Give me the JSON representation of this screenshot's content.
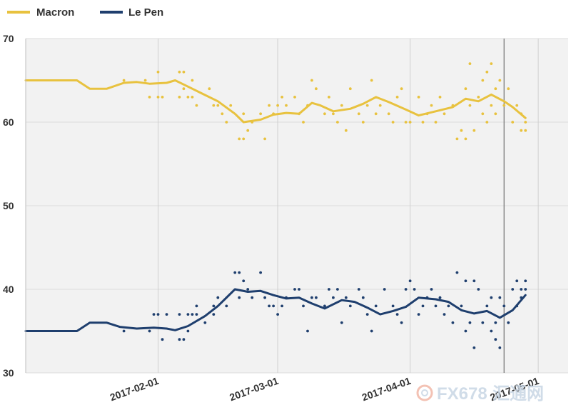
{
  "chart_data": {
    "type": "line",
    "title": "",
    "xlabel": "",
    "ylabel": "",
    "ylim": [
      30,
      70
    ],
    "yticks": [
      30,
      40,
      50,
      60,
      70
    ],
    "xticks": [
      {
        "date": "2017-02-01",
        "label": "2017-02-01"
      },
      {
        "date": "2017-03-01",
        "label": "2017-03-01"
      },
      {
        "date": "2017-04-01",
        "label": "2017-04-01"
      },
      {
        "date": "2017-05-01",
        "label": "2017-05-01"
      }
    ],
    "xrange": [
      "2017-01-01",
      "2017-05-08"
    ],
    "marker_line_date": "2017-04-23",
    "grid": true,
    "legend_position": "top-left",
    "series": [
      {
        "name": "Macron",
        "color": "#e8c23f",
        "trend": [
          [
            "2017-01-01",
            65.0
          ],
          [
            "2017-01-13",
            65.0
          ],
          [
            "2017-01-16",
            64.0
          ],
          [
            "2017-01-20",
            64.0
          ],
          [
            "2017-01-24",
            64.7
          ],
          [
            "2017-01-27",
            64.8
          ],
          [
            "2017-01-30",
            64.6
          ],
          [
            "2017-02-03",
            64.7
          ],
          [
            "2017-02-05",
            65.0
          ],
          [
            "2017-02-07",
            64.5
          ],
          [
            "2017-02-11",
            63.5
          ],
          [
            "2017-02-15",
            62.5
          ],
          [
            "2017-02-19",
            61.0
          ],
          [
            "2017-02-21",
            60.0
          ],
          [
            "2017-02-25",
            60.3
          ],
          [
            "2017-02-28",
            60.9
          ],
          [
            "2017-03-03",
            61.1
          ],
          [
            "2017-03-06",
            61.0
          ],
          [
            "2017-03-09",
            62.3
          ],
          [
            "2017-03-11",
            62.0
          ],
          [
            "2017-03-14",
            61.3
          ],
          [
            "2017-03-18",
            61.6
          ],
          [
            "2017-03-21",
            62.2
          ],
          [
            "2017-03-24",
            63.0
          ],
          [
            "2017-03-27",
            62.4
          ],
          [
            "2017-03-31",
            61.5
          ],
          [
            "2017-04-03",
            60.8
          ],
          [
            "2017-04-07",
            61.3
          ],
          [
            "2017-04-11",
            61.8
          ],
          [
            "2017-04-14",
            62.8
          ],
          [
            "2017-04-17",
            62.5
          ],
          [
            "2017-04-20",
            63.3
          ],
          [
            "2017-04-23",
            62.5
          ],
          [
            "2017-04-25",
            61.8
          ],
          [
            "2017-04-28",
            60.5
          ]
        ],
        "polls": [
          [
            "2017-01-24",
            65
          ],
          [
            "2017-01-29",
            65
          ],
          [
            "2017-01-30",
            63
          ],
          [
            "2017-02-01",
            66
          ],
          [
            "2017-02-01",
            63
          ],
          [
            "2017-02-02",
            63
          ],
          [
            "2017-02-06",
            66
          ],
          [
            "2017-02-06",
            63
          ],
          [
            "2017-02-07",
            66
          ],
          [
            "2017-02-07",
            64
          ],
          [
            "2017-02-08",
            63
          ],
          [
            "2017-02-09",
            65
          ],
          [
            "2017-02-09",
            63
          ],
          [
            "2017-02-10",
            62
          ],
          [
            "2017-02-13",
            64
          ],
          [
            "2017-02-14",
            62
          ],
          [
            "2017-02-15",
            62
          ],
          [
            "2017-02-16",
            61
          ],
          [
            "2017-02-17",
            60
          ],
          [
            "2017-02-18",
            62
          ],
          [
            "2017-02-20",
            58
          ],
          [
            "2017-02-21",
            61
          ],
          [
            "2017-02-21",
            58
          ],
          [
            "2017-02-22",
            59
          ],
          [
            "2017-02-23",
            60
          ],
          [
            "2017-02-25",
            61
          ],
          [
            "2017-02-26",
            58
          ],
          [
            "2017-02-27",
            62
          ],
          [
            "2017-02-28",
            61
          ],
          [
            "2017-03-01",
            62
          ],
          [
            "2017-03-02",
            63
          ],
          [
            "2017-03-03",
            62
          ],
          [
            "2017-03-05",
            63
          ],
          [
            "2017-03-06",
            61
          ],
          [
            "2017-03-07",
            60
          ],
          [
            "2017-03-08",
            62
          ],
          [
            "2017-03-09",
            65
          ],
          [
            "2017-03-10",
            64
          ],
          [
            "2017-03-12",
            61
          ],
          [
            "2017-03-13",
            63
          ],
          [
            "2017-03-14",
            61
          ],
          [
            "2017-03-15",
            60
          ],
          [
            "2017-03-16",
            62
          ],
          [
            "2017-03-17",
            59
          ],
          [
            "2017-03-18",
            64
          ],
          [
            "2017-03-20",
            61
          ],
          [
            "2017-03-21",
            60
          ],
          [
            "2017-03-22",
            62
          ],
          [
            "2017-03-23",
            65
          ],
          [
            "2017-03-24",
            61
          ],
          [
            "2017-03-25",
            62
          ],
          [
            "2017-03-27",
            61
          ],
          [
            "2017-03-28",
            60
          ],
          [
            "2017-03-29",
            63
          ],
          [
            "2017-03-30",
            64
          ],
          [
            "2017-03-31",
            60
          ],
          [
            "2017-04-01",
            60
          ],
          [
            "2017-04-03",
            63
          ],
          [
            "2017-04-04",
            60
          ],
          [
            "2017-04-05",
            61
          ],
          [
            "2017-04-06",
            62
          ],
          [
            "2017-04-07",
            60
          ],
          [
            "2017-04-08",
            63
          ],
          [
            "2017-04-09",
            61
          ],
          [
            "2017-04-11",
            62
          ],
          [
            "2017-04-12",
            58
          ],
          [
            "2017-04-13",
            59
          ],
          [
            "2017-04-14",
            64
          ],
          [
            "2017-04-14",
            58
          ],
          [
            "2017-04-15",
            62
          ],
          [
            "2017-04-15",
            67
          ],
          [
            "2017-04-16",
            59
          ],
          [
            "2017-04-17",
            63
          ],
          [
            "2017-04-18",
            65
          ],
          [
            "2017-04-18",
            61
          ],
          [
            "2017-04-19",
            66
          ],
          [
            "2017-04-19",
            60
          ],
          [
            "2017-04-20",
            67
          ],
          [
            "2017-04-20",
            62
          ],
          [
            "2017-04-21",
            64
          ],
          [
            "2017-04-21",
            61
          ],
          [
            "2017-04-22",
            65
          ],
          [
            "2017-04-23",
            62
          ],
          [
            "2017-04-24",
            64
          ],
          [
            "2017-04-25",
            60
          ],
          [
            "2017-04-26",
            62
          ],
          [
            "2017-04-27",
            59
          ],
          [
            "2017-04-27",
            61
          ],
          [
            "2017-04-28",
            60
          ],
          [
            "2017-04-28",
            59
          ]
        ]
      },
      {
        "name": "Le Pen",
        "color": "#1f3f6e",
        "trend": [
          [
            "2017-01-01",
            35.0
          ],
          [
            "2017-01-13",
            35.0
          ],
          [
            "2017-01-16",
            36.0
          ],
          [
            "2017-01-20",
            36.0
          ],
          [
            "2017-01-23",
            35.5
          ],
          [
            "2017-01-27",
            35.3
          ],
          [
            "2017-01-31",
            35.4
          ],
          [
            "2017-02-03",
            35.3
          ],
          [
            "2017-02-05",
            35.1
          ],
          [
            "2017-02-08",
            35.6
          ],
          [
            "2017-02-12",
            36.8
          ],
          [
            "2017-02-15",
            38.0
          ],
          [
            "2017-02-19",
            40.0
          ],
          [
            "2017-02-22",
            39.7
          ],
          [
            "2017-02-25",
            39.8
          ],
          [
            "2017-02-28",
            39.3
          ],
          [
            "2017-03-03",
            38.9
          ],
          [
            "2017-03-06",
            39.0
          ],
          [
            "2017-03-09",
            38.3
          ],
          [
            "2017-03-12",
            37.7
          ],
          [
            "2017-03-16",
            38.7
          ],
          [
            "2017-03-19",
            38.5
          ],
          [
            "2017-03-22",
            37.8
          ],
          [
            "2017-03-25",
            37.0
          ],
          [
            "2017-03-28",
            37.4
          ],
          [
            "2017-03-31",
            37.9
          ],
          [
            "2017-04-03",
            39.0
          ],
          [
            "2017-04-07",
            38.8
          ],
          [
            "2017-04-10",
            38.5
          ],
          [
            "2017-04-13",
            37.5
          ],
          [
            "2017-04-16",
            37.1
          ],
          [
            "2017-04-19",
            37.4
          ],
          [
            "2017-04-22",
            36.6
          ],
          [
            "2017-04-25",
            37.5
          ],
          [
            "2017-04-28",
            39.3
          ]
        ],
        "polls": [
          [
            "2017-01-24",
            35
          ],
          [
            "2017-01-30",
            35
          ],
          [
            "2017-01-31",
            37
          ],
          [
            "2017-02-01",
            37
          ],
          [
            "2017-02-02",
            34
          ],
          [
            "2017-02-03",
            37
          ],
          [
            "2017-02-06",
            37
          ],
          [
            "2017-02-06",
            34
          ],
          [
            "2017-02-07",
            34
          ],
          [
            "2017-02-08",
            35
          ],
          [
            "2017-02-08",
            37
          ],
          [
            "2017-02-09",
            37
          ],
          [
            "2017-02-10",
            37
          ],
          [
            "2017-02-10",
            38
          ],
          [
            "2017-02-12",
            36
          ],
          [
            "2017-02-14",
            37
          ],
          [
            "2017-02-14",
            38
          ],
          [
            "2017-02-15",
            39
          ],
          [
            "2017-02-17",
            38
          ],
          [
            "2017-02-19",
            42
          ],
          [
            "2017-02-20",
            42
          ],
          [
            "2017-02-20",
            39
          ],
          [
            "2017-02-21",
            41
          ],
          [
            "2017-02-22",
            40
          ],
          [
            "2017-02-23",
            39
          ],
          [
            "2017-02-25",
            42
          ],
          [
            "2017-02-26",
            39
          ],
          [
            "2017-02-27",
            38
          ],
          [
            "2017-02-28",
            38
          ],
          [
            "2017-03-01",
            37
          ],
          [
            "2017-03-02",
            38
          ],
          [
            "2017-03-03",
            39
          ],
          [
            "2017-03-05",
            40
          ],
          [
            "2017-03-06",
            40
          ],
          [
            "2017-03-07",
            38
          ],
          [
            "2017-03-08",
            35
          ],
          [
            "2017-03-09",
            39
          ],
          [
            "2017-03-10",
            39
          ],
          [
            "2017-03-12",
            38
          ],
          [
            "2017-03-13",
            40
          ],
          [
            "2017-03-14",
            39
          ],
          [
            "2017-03-15",
            40
          ],
          [
            "2017-03-16",
            36
          ],
          [
            "2017-03-17",
            39
          ],
          [
            "2017-03-18",
            38
          ],
          [
            "2017-03-20",
            40
          ],
          [
            "2017-03-21",
            39
          ],
          [
            "2017-03-22",
            37
          ],
          [
            "2017-03-23",
            35
          ],
          [
            "2017-03-24",
            38
          ],
          [
            "2017-03-26",
            40
          ],
          [
            "2017-03-28",
            38
          ],
          [
            "2017-03-29",
            37
          ],
          [
            "2017-03-30",
            36
          ],
          [
            "2017-03-31",
            40
          ],
          [
            "2017-04-01",
            41
          ],
          [
            "2017-04-02",
            40
          ],
          [
            "2017-04-03",
            37
          ],
          [
            "2017-04-04",
            38
          ],
          [
            "2017-04-05",
            39
          ],
          [
            "2017-04-06",
            40
          ],
          [
            "2017-04-07",
            38
          ],
          [
            "2017-04-08",
            39
          ],
          [
            "2017-04-09",
            37
          ],
          [
            "2017-04-10",
            38
          ],
          [
            "2017-04-11",
            36
          ],
          [
            "2017-04-12",
            42
          ],
          [
            "2017-04-13",
            38
          ],
          [
            "2017-04-14",
            41
          ],
          [
            "2017-04-14",
            35
          ],
          [
            "2017-04-15",
            36
          ],
          [
            "2017-04-16",
            33
          ],
          [
            "2017-04-16",
            41
          ],
          [
            "2017-04-17",
            40
          ],
          [
            "2017-04-18",
            36
          ],
          [
            "2017-04-19",
            38
          ],
          [
            "2017-04-20",
            35
          ],
          [
            "2017-04-20",
            39
          ],
          [
            "2017-04-21",
            34
          ],
          [
            "2017-04-21",
            36
          ],
          [
            "2017-04-22",
            33
          ],
          [
            "2017-04-22",
            39
          ],
          [
            "2017-04-23",
            38
          ],
          [
            "2017-04-24",
            36
          ],
          [
            "2017-04-25",
            40
          ],
          [
            "2017-04-26",
            38
          ],
          [
            "2017-04-26",
            41
          ],
          [
            "2017-04-27",
            39
          ],
          [
            "2017-04-27",
            40
          ],
          [
            "2017-04-28",
            41
          ],
          [
            "2017-04-28",
            40
          ]
        ]
      }
    ]
  },
  "watermark": {
    "text": "FX678",
    "subtext": "汇通网",
    "color": "#c8d6e5",
    "accent": "#f2b8a8"
  }
}
